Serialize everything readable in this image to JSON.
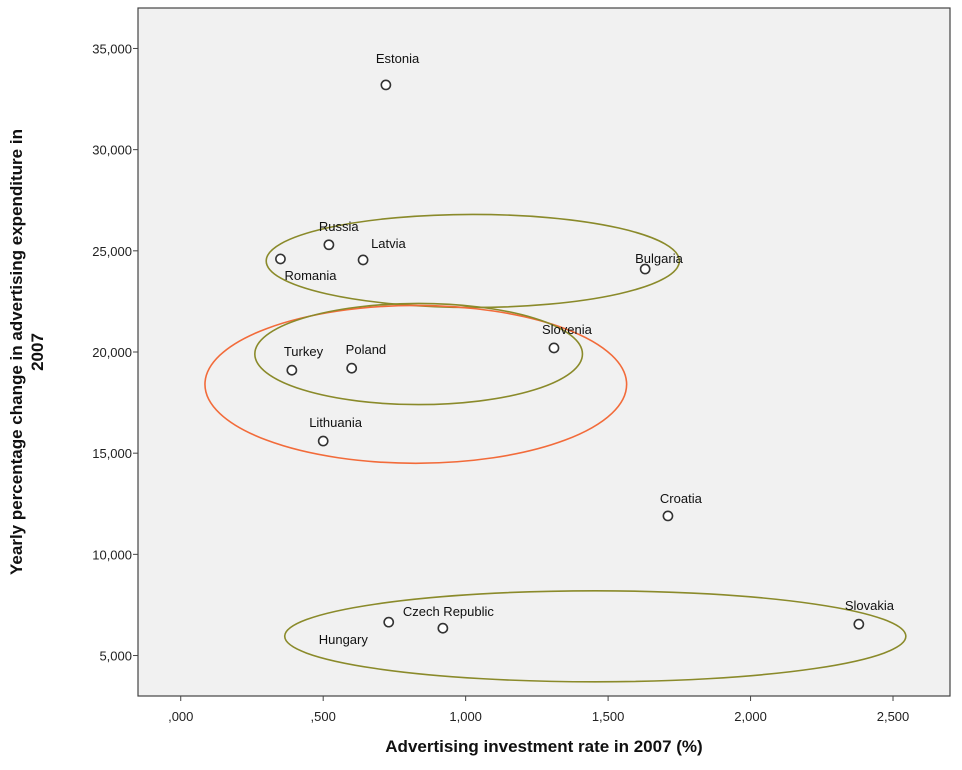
{
  "chart_data": {
    "type": "scatter",
    "title": "",
    "xlabel": "Advertising investment rate in 2007 (%)",
    "ylabel_line1": "Yearly percentage change in advertising expenditure in",
    "ylabel_line2": "2007",
    "xlim": [
      -0.15,
      2.7
    ],
    "ylim": [
      3000,
      37000
    ],
    "xticks": [
      0,
      0.5,
      1.0,
      1.5,
      2.0,
      2.5
    ],
    "xtick_labels": [
      ",000",
      ",500",
      "1,000",
      "1,500",
      "2,000",
      "2,500"
    ],
    "yticks": [
      5000,
      10000,
      15000,
      20000,
      25000,
      30000,
      35000
    ],
    "ytick_labels": [
      "5,000",
      "10,000",
      "15,000",
      "20,000",
      "25,000",
      "30,000",
      "35,000"
    ],
    "grid": false,
    "colors": {
      "plot_bg": "#f1f1f1",
      "marker": "#333333",
      "olive_ellipse": "#8a8a2a",
      "orange_ellipse": "#f26b3a"
    },
    "points": [
      {
        "label": "Estonia",
        "x": 0.72,
        "y": 33200
      },
      {
        "label": "Russia",
        "x": 0.52,
        "y": 25300
      },
      {
        "label": "Latvia",
        "x": 0.64,
        "y": 24550
      },
      {
        "label": "Romania",
        "x": 0.35,
        "y": 24600
      },
      {
        "label": "Bulgaria",
        "x": 1.63,
        "y": 24100
      },
      {
        "label": "Slovenia",
        "x": 1.31,
        "y": 20200
      },
      {
        "label": "Turkey",
        "x": 0.39,
        "y": 19100
      },
      {
        "label": "Poland",
        "x": 0.6,
        "y": 19200
      },
      {
        "label": "Lithuania",
        "x": 0.5,
        "y": 15600
      },
      {
        "label": "Croatia",
        "x": 1.71,
        "y": 11900
      },
      {
        "label": "Czech Republic",
        "x": 0.92,
        "y": 6350
      },
      {
        "label": "Hungary",
        "x": 0.73,
        "y": 6650
      },
      {
        "label": "Slovakia",
        "x": 2.38,
        "y": 6550
      }
    ],
    "ellipses": [
      {
        "color": "olive",
        "cx": 1.025,
        "cy": 24500,
        "rx": 0.725,
        "ry": 2300
      },
      {
        "color": "orange",
        "cx": 0.825,
        "cy": 18400,
        "rx": 0.74,
        "ry": 3900
      },
      {
        "color": "olive",
        "cx": 0.835,
        "cy": 19900,
        "rx": 0.575,
        "ry": 2500
      },
      {
        "color": "olive",
        "cx": 1.455,
        "cy": 5950,
        "rx": 1.09,
        "ry": 2250
      }
    ]
  }
}
